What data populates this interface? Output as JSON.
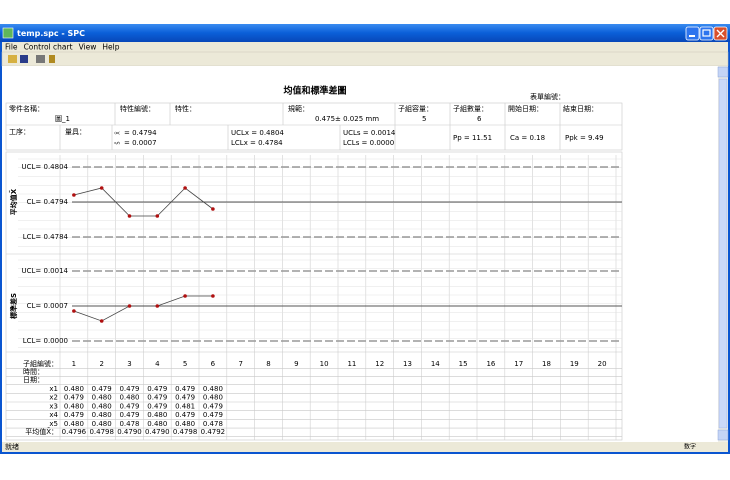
{
  "window": {
    "title": "temp.spc - SPC",
    "menu": [
      "File",
      "Control chart",
      "View",
      "Help"
    ],
    "status": "就绪",
    "status_right": "数字"
  },
  "sheet": {
    "title": "均值和標準差圖",
    "form_no": "表單編號：",
    "header": {
      "part_name_label": "零件名稱：",
      "part_name": "圖_1",
      "char_no_label": "特性編號：",
      "char_label": "特性：",
      "spec_label": "規範：",
      "spec": "0.475± 0.025 mm",
      "size_label": "子組容量：",
      "size": 5,
      "count_label": "子組數量：",
      "count": 6,
      "start_label": "開始日期：",
      "end_label": "結束日期：",
      "process_label": "工序：",
      "gauge_label": "量具：",
      "xbar_sym": "X̄",
      "xbar": "= 0.4794",
      "sbar_sym": "S̄",
      "sbar": "= 0.0007",
      "uclx": "UCLx = 0.4804",
      "lclx": "LCLx = 0.4784",
      "ucls": "UCLs = 0.0014",
      "lcls": "LCLs = 0.0000",
      "pp": "Pp = 11.51",
      "ca": "Ca = 0.18",
      "ppk": "Ppk = 9.49"
    },
    "charts": [
      {
        "ylabel": "平均值X̄",
        "limits": [
          {
            "value": 0.4804,
            "label": "UCL= 0.4804"
          },
          {
            "value": 0.4794,
            "label": "CL= 0.4794"
          },
          {
            "value": 0.4784,
            "label": "LCL= 0.4784"
          }
        ],
        "values": [
          0.4796,
          0.4798,
          0.479,
          0.479,
          0.4798,
          0.4792
        ]
      },
      {
        "ylabel": "標準差S",
        "limits": [
          {
            "value": 0.0014,
            "label": "UCL= 0.0014"
          },
          {
            "value": 0.0007,
            "label": "CL= 0.0007"
          },
          {
            "value": 0,
            "label": "LCL= 0.0000"
          }
        ],
        "values": [
          0.0006,
          0.0004,
          0.0007,
          0.0007,
          0.0009,
          0.0009
        ]
      }
    ],
    "table": {
      "number_label": "子組編號：",
      "numbers": [
        1,
        2,
        3,
        4,
        5,
        6,
        7,
        8,
        9,
        10,
        11,
        12,
        13,
        14,
        15,
        16,
        17,
        18,
        19,
        20
      ],
      "time_label": "時間：",
      "date_label": "日期：",
      "rows": [
        {
          "label": "x1",
          "values": [
            "0.480",
            "0.479",
            "0.479",
            "0.479",
            "0.479",
            "0.480"
          ]
        },
        {
          "label": "x2",
          "values": [
            "0.479",
            "0.480",
            "0.480",
            "0.479",
            "0.479",
            "0.480"
          ]
        },
        {
          "label": "x3",
          "values": [
            "0.480",
            "0.480",
            "0.479",
            "0.479",
            "0.481",
            "0.479"
          ]
        },
        {
          "label": "x4",
          "values": [
            "0.479",
            "0.480",
            "0.479",
            "0.480",
            "0.479",
            "0.479"
          ]
        },
        {
          "label": "x5",
          "values": [
            "0.480",
            "0.480",
            "0.478",
            "0.480",
            "0.480",
            "0.478"
          ]
        }
      ],
      "mean_label": "平均值X̄：",
      "means": [
        "0.4796",
        "0.4798",
        "0.4790",
        "0.4790",
        "0.4798",
        "0.4792"
      ]
    }
  }
}
